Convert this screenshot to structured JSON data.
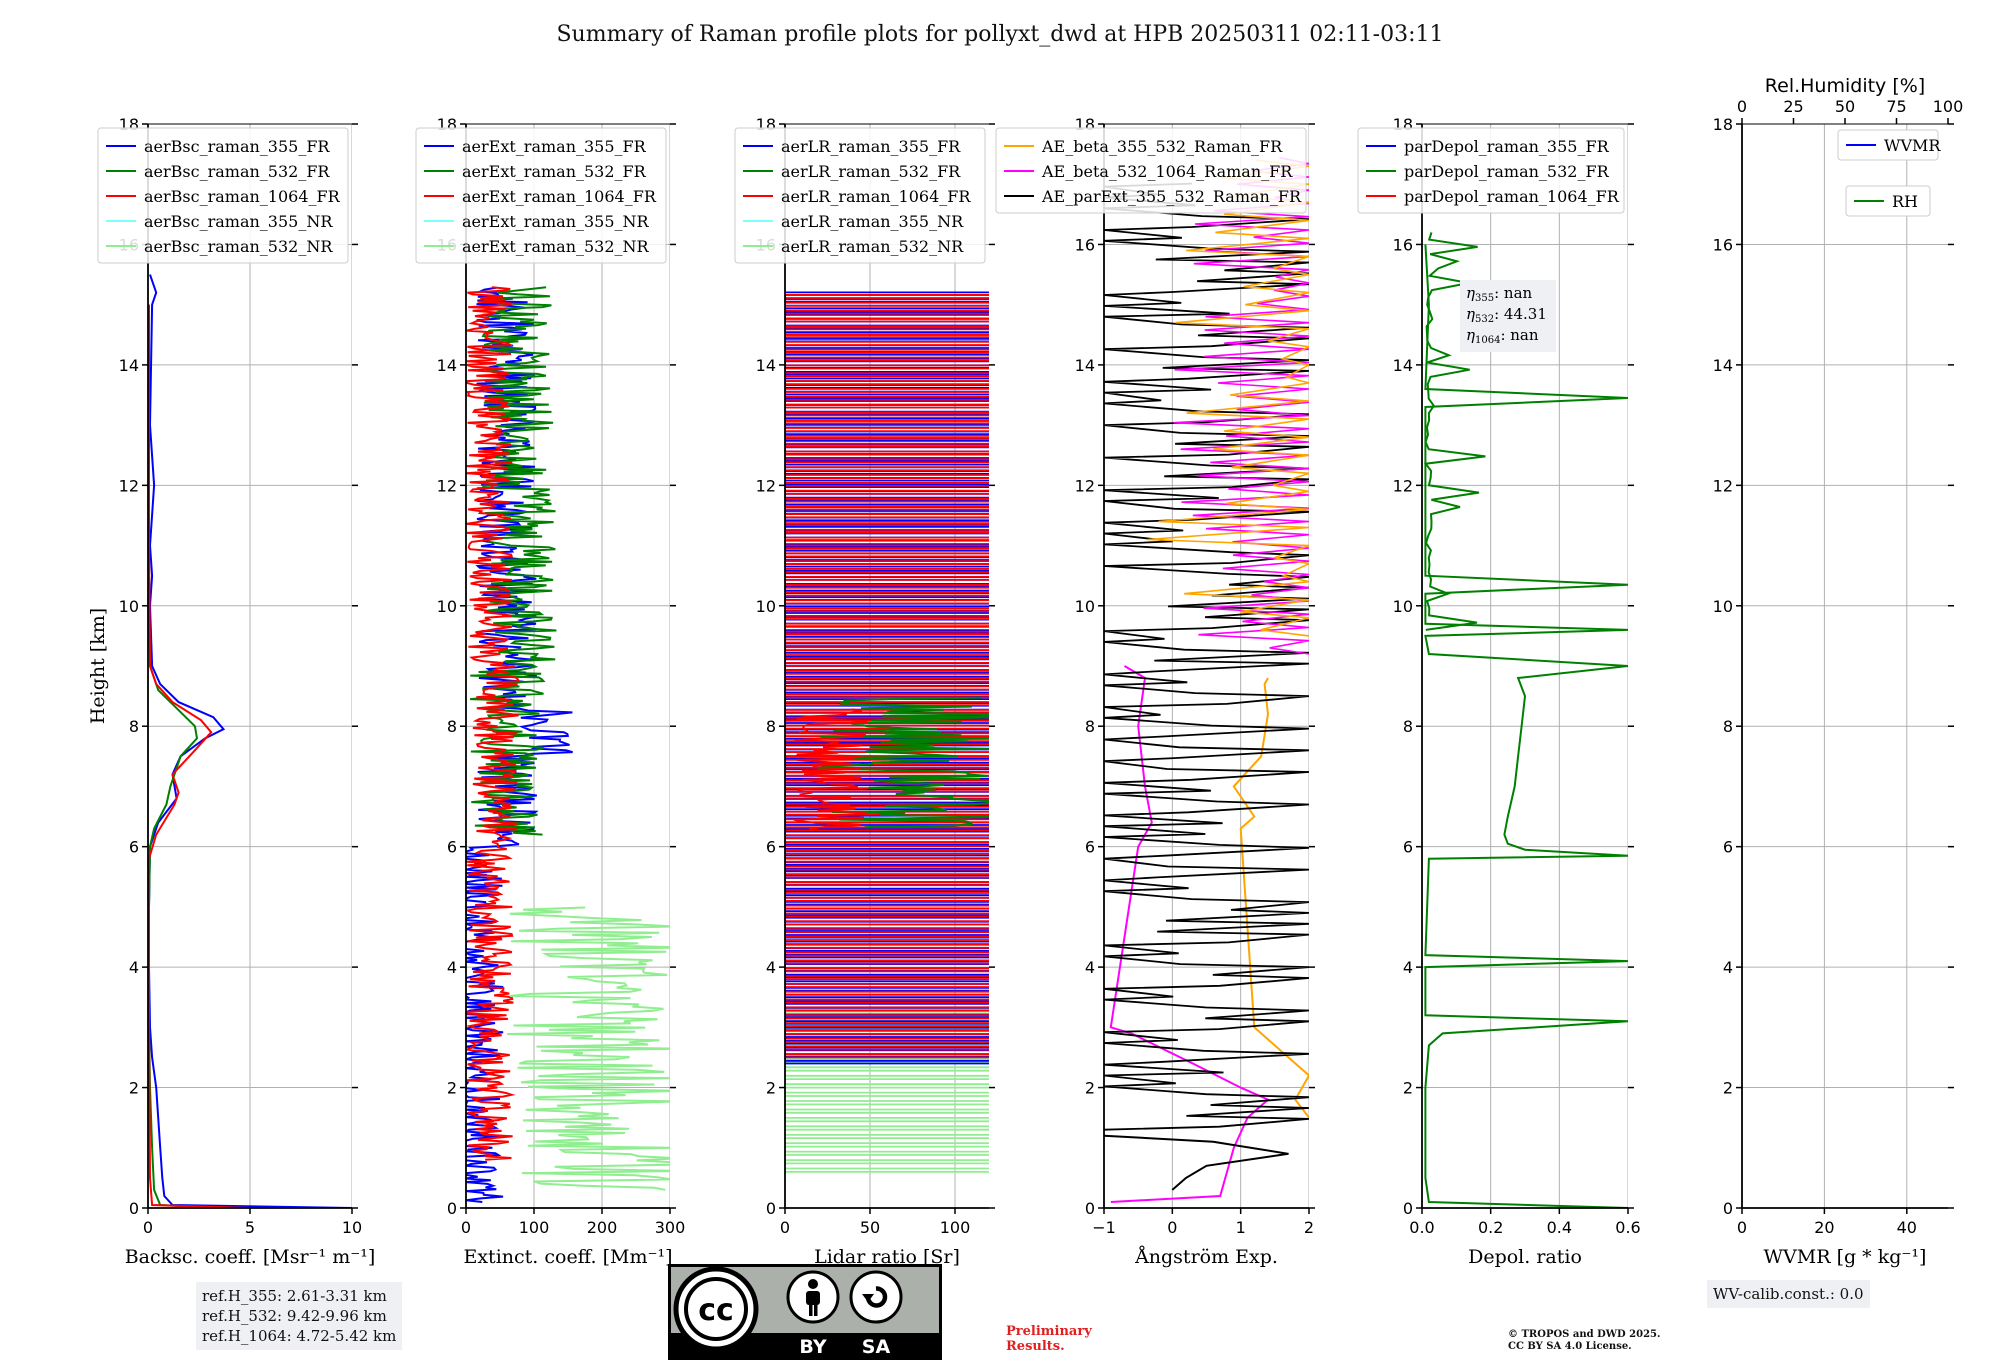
{
  "title": "Summary of Raman profile plots for pollyxt_dwd at HPB 20250311 02:11-03:11",
  "colors": {
    "blue": "#0000ff",
    "green": "#008000",
    "red": "#ff0000",
    "cyan": "#80ffff",
    "lightgreen": "#90ee90",
    "orange": "#ffa500",
    "magenta": "#ff00ff",
    "black": "#000000"
  },
  "chart_data": [
    {
      "type": "line",
      "panel": "backscatter",
      "xlabel": "Backsc. coeff. [Msr⁻¹ m⁻¹]",
      "ylabel": "Height [km]",
      "xlim": [
        0,
        10
      ],
      "ylim": [
        0,
        18
      ],
      "xticks": [
        "0",
        "5",
        "10"
      ],
      "yticks": [
        "0",
        "2",
        "4",
        "6",
        "8",
        "10",
        "12",
        "14",
        "16",
        "18"
      ],
      "legend_position": "top",
      "series": [
        {
          "name": "aerBsc_raman_355_FR",
          "color": "blue",
          "points": [
            [
              10,
              0
            ],
            [
              1.2,
              0.05
            ],
            [
              0.8,
              0.2
            ],
            [
              0.7,
              0.5
            ],
            [
              0.6,
              1.0
            ],
            [
              0.5,
              1.5
            ],
            [
              0.4,
              2.0
            ],
            [
              0.2,
              2.5
            ],
            [
              0.1,
              3
            ],
            [
              0.05,
              4
            ],
            [
              0.05,
              5
            ],
            [
              0.1,
              6
            ],
            [
              0.5,
              6.4
            ],
            [
              1.4,
              6.8
            ],
            [
              1.2,
              7.2
            ],
            [
              1.6,
              7.5
            ],
            [
              2.8,
              7.8
            ],
            [
              3.7,
              7.95
            ],
            [
              3.2,
              8.15
            ],
            [
              1.5,
              8.4
            ],
            [
              0.6,
              8.7
            ],
            [
              0.2,
              9
            ],
            [
              0.1,
              10
            ],
            [
              0.2,
              10.5
            ],
            [
              0.1,
              11
            ],
            [
              0.3,
              12
            ],
            [
              0.1,
              13
            ],
            [
              0.2,
              15
            ],
            [
              0.4,
              15.2
            ],
            [
              0.1,
              15.5
            ]
          ]
        },
        {
          "name": "aerBsc_raman_532_FR",
          "color": "green",
          "points": [
            [
              3.5,
              0
            ],
            [
              0.6,
              0.05
            ],
            [
              0.3,
              0.3
            ],
            [
              0.2,
              1
            ],
            [
              0.1,
              2
            ],
            [
              0.05,
              3
            ],
            [
              0.05,
              5
            ],
            [
              0.1,
              6
            ],
            [
              0.3,
              6.3
            ],
            [
              0.9,
              6.7
            ],
            [
              1.1,
              7.0
            ],
            [
              1.6,
              7.5
            ],
            [
              2.4,
              7.8
            ],
            [
              2.3,
              8.0
            ],
            [
              1.4,
              8.3
            ],
            [
              0.5,
              8.6
            ],
            [
              0.1,
              9
            ],
            [
              0.05,
              10
            ],
            [
              0.05,
              15
            ]
          ]
        },
        {
          "name": "aerBsc_raman_1064_FR",
          "color": "red",
          "points": [
            [
              5.0,
              0
            ],
            [
              0.2,
              0.05
            ],
            [
              0.1,
              0.5
            ],
            [
              0.05,
              3
            ],
            [
              0.05,
              5.8
            ],
            [
              0.4,
              6.2
            ],
            [
              1.3,
              6.7
            ],
            [
              1.5,
              6.9
            ],
            [
              1.2,
              7.2
            ],
            [
              2.3,
              7.6
            ],
            [
              3.1,
              7.9
            ],
            [
              2.6,
              8.1
            ],
            [
              1.2,
              8.4
            ],
            [
              0.4,
              8.7
            ],
            [
              0.1,
              9
            ],
            [
              0.05,
              11
            ],
            [
              0.05,
              15
            ]
          ]
        },
        {
          "name": "aerBsc_raman_355_NR",
          "color": "cyan",
          "points": []
        },
        {
          "name": "aerBsc_raman_532_NR",
          "color": "lightgreen",
          "points": []
        }
      ]
    },
    {
      "type": "line",
      "panel": "extinction",
      "xlabel": "Extinct. coeff. [Mm⁻¹]",
      "xlim": [
        0,
        300
      ],
      "ylim": [
        0,
        18
      ],
      "xticks": [
        "0",
        "100",
        "200",
        "300"
      ],
      "yticks": [
        "0",
        "2",
        "4",
        "6",
        "8",
        "10",
        "12",
        "14",
        "16",
        "18"
      ],
      "legend_position": "top",
      "series": [
        {
          "name": "aerExt_raman_355_FR",
          "color": "blue"
        },
        {
          "name": "aerExt_raman_532_FR",
          "color": "green"
        },
        {
          "name": "aerExt_raman_1064_FR",
          "color": "red"
        },
        {
          "name": "aerExt_raman_355_NR",
          "color": "cyan"
        },
        {
          "name": "aerExt_raman_532_NR",
          "color": "lightgreen"
        }
      ]
    },
    {
      "type": "line",
      "panel": "lidar_ratio",
      "xlabel": "Lidar ratio [Sr]",
      "xlim": [
        0,
        120
      ],
      "ylim": [
        0,
        18
      ],
      "xticks": [
        "0",
        "50",
        "100"
      ],
      "yticks": [
        "0",
        "2",
        "4",
        "6",
        "8",
        "10",
        "12",
        "14",
        "16",
        "18"
      ],
      "legend_position": "top",
      "series": [
        {
          "name": "aerLR_raman_355_FR",
          "color": "blue"
        },
        {
          "name": "aerLR_raman_532_FR",
          "color": "green"
        },
        {
          "name": "aerLR_raman_1064_FR",
          "color": "red"
        },
        {
          "name": "aerLR_raman_355_NR",
          "color": "cyan"
        },
        {
          "name": "aerLR_raman_532_NR",
          "color": "lightgreen"
        }
      ]
    },
    {
      "type": "line",
      "panel": "angstrom",
      "xlabel": "Ångström Exp.",
      "xlim": [
        -1,
        2
      ],
      "ylim": [
        0,
        18
      ],
      "xticks": [
        "−1",
        "0",
        "1",
        "2"
      ],
      "yticks": [
        "0",
        "2",
        "4",
        "6",
        "8",
        "10",
        "12",
        "14",
        "16",
        "18"
      ],
      "legend_position": "top",
      "series": [
        {
          "name": "AE_beta_355_532_Raman_FR",
          "color": "orange",
          "points": [
            [
              2,
              1.5
            ],
            [
              1.8,
              1.8
            ],
            [
              2,
              2.2
            ],
            [
              1.4,
              2.8
            ],
            [
              1.2,
              3.0
            ],
            [
              1.0,
              6.3
            ],
            [
              1.2,
              6.5
            ],
            [
              0.9,
              7.0
            ],
            [
              1.3,
              7.5
            ],
            [
              1.4,
              8.2
            ],
            [
              1.35,
              8.7
            ],
            [
              1.4,
              8.8
            ]
          ]
        },
        {
          "name": "AE_beta_532_1064_Raman_FR",
          "color": "magenta",
          "points": [
            [
              -0.9,
              0.1
            ],
            [
              0.7,
              0.2
            ],
            [
              0.8,
              0.6
            ],
            [
              0.9,
              1.0
            ],
            [
              1.1,
              1.5
            ],
            [
              1.4,
              1.8
            ],
            [
              1.0,
              2.0
            ],
            [
              0.3,
              2.4
            ],
            [
              -0.6,
              2.9
            ],
            [
              -0.9,
              3.0
            ],
            [
              -0.5,
              6.0
            ],
            [
              -0.3,
              6.4
            ],
            [
              -0.4,
              7.0
            ],
            [
              -0.5,
              8.0
            ],
            [
              -0.4,
              8.8
            ],
            [
              -0.7,
              9.0
            ]
          ]
        },
        {
          "name": "AE_parExt_355_532_Raman_FR",
          "color": "black",
          "points": [
            [
              0,
              0.3
            ],
            [
              0.2,
              0.5
            ],
            [
              0.5,
              0.7
            ],
            [
              1.7,
              0.9
            ],
            [
              0.6,
              1.1
            ],
            [
              -1,
              1.2
            ]
          ]
        }
      ]
    },
    {
      "type": "line",
      "panel": "depolarization",
      "xlabel": "Depol. ratio",
      "xlim": [
        0,
        0.6
      ],
      "ylim": [
        0,
        18
      ],
      "xticks": [
        "0.0",
        "0.2",
        "0.4",
        "0.6"
      ],
      "yticks": [
        "0",
        "2",
        "4",
        "6",
        "8",
        "10",
        "12",
        "14",
        "16",
        "18"
      ],
      "legend_position": "top",
      "series": [
        {
          "name": "parDepol_raman_355_FR",
          "color": "blue",
          "points": []
        },
        {
          "name": "parDepol_raman_532_FR",
          "color": "green",
          "points": [
            [
              0.6,
              0
            ],
            [
              0.02,
              0.1
            ],
            [
              0.01,
              0.5
            ],
            [
              0.01,
              2.0
            ],
            [
              0.02,
              2.7
            ],
            [
              0.06,
              2.9
            ],
            [
              0.6,
              3.1
            ],
            [
              0.01,
              3.2
            ],
            [
              0.01,
              4
            ],
            [
              0.6,
              4.1
            ],
            [
              0.01,
              4.2
            ],
            [
              0.02,
              5.8
            ],
            [
              0.6,
              5.85
            ],
            [
              0.3,
              5.95
            ],
            [
              0.25,
              6.05
            ],
            [
              0.24,
              6.2
            ],
            [
              0.25,
              6.5
            ],
            [
              0.27,
              7.0
            ],
            [
              0.28,
              7.5
            ],
            [
              0.29,
              8.0
            ],
            [
              0.3,
              8.5
            ],
            [
              0.28,
              8.8
            ],
            [
              0.6,
              9.0
            ],
            [
              0.02,
              9.2
            ],
            [
              0.01,
              9.5
            ],
            [
              0.6,
              9.6
            ],
            [
              0.01,
              9.7
            ],
            [
              0.01,
              10.2
            ],
            [
              0.6,
              10.35
            ],
            [
              0.01,
              10.5
            ],
            [
              0.01,
              13.3
            ],
            [
              0.6,
              13.45
            ],
            [
              0.01,
              13.6
            ],
            [
              0.02,
              15
            ],
            [
              0.01,
              16
            ]
          ]
        },
        {
          "name": "parDepol_raman_1064_FR",
          "color": "red",
          "points": []
        }
      ],
      "annotation": {
        "lines": [
          {
            "sym": "η",
            "sub": "355",
            "value": ": nan"
          },
          {
            "sym": "η",
            "sub": "532",
            "value": ": 44.31"
          },
          {
            "sym": "η",
            "sub": "1064",
            "value": ": nan"
          }
        ]
      }
    },
    {
      "type": "line",
      "panel": "water_vapor",
      "xlabel": "WVMR [g * kg⁻¹]",
      "top_xlabel": "Rel.Humidity [%]",
      "xlim": [
        0,
        50
      ],
      "top_xlim": [
        0,
        100
      ],
      "ylim": [
        0,
        18
      ],
      "xticks": [
        "0",
        "20",
        "40"
      ],
      "top_xticks": [
        "0",
        "25",
        "50",
        "75",
        "100"
      ],
      "yticks": [
        "0",
        "2",
        "4",
        "6",
        "8",
        "10",
        "12",
        "14",
        "16",
        "18"
      ],
      "legend_position": "top-right",
      "series": [
        {
          "name": "WVMR",
          "color": "blue",
          "points": []
        },
        {
          "name": "RH",
          "color": "green",
          "points": []
        }
      ]
    }
  ],
  "info": {
    "ref_heights": [
      "ref.H_355: 2.61-3.31 km",
      "ref.H_532: 9.42-9.96 km",
      "ref.H_1064: 4.72-5.42 km"
    ],
    "wv_calib": "WV-calib.const.: 0.0",
    "preliminary": [
      "Preliminary",
      "Results."
    ],
    "copyright": [
      "© TROPOS and DWD 2025.",
      "CC BY SA 4.0 License."
    ],
    "license_badge": {
      "by": "BY",
      "sa": "SA"
    }
  }
}
